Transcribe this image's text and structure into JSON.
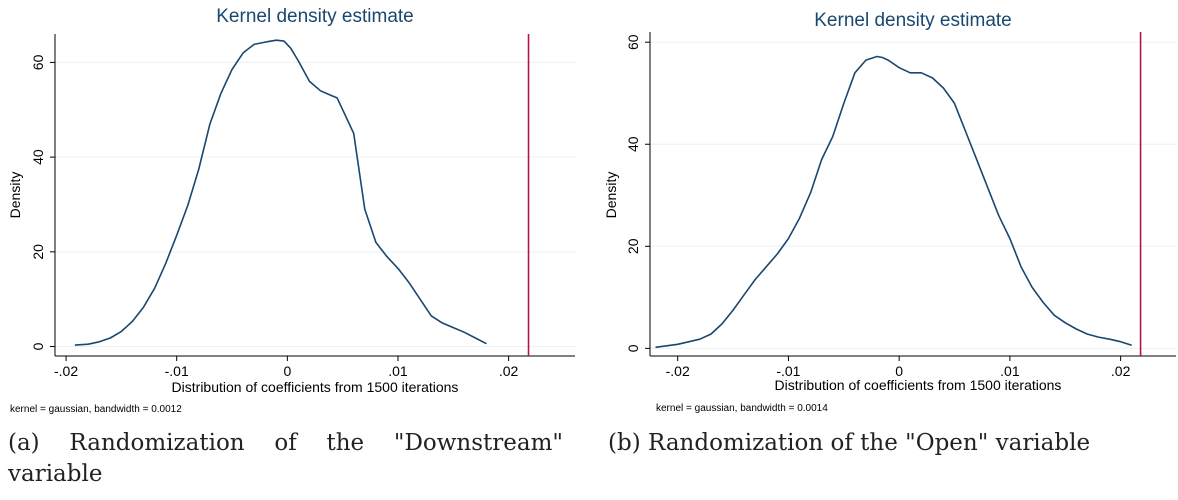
{
  "chart_data": [
    {
      "type": "line",
      "title": "Kernel density estimate",
      "xlabel": "Distribution of coefficients from 1500 iterations",
      "ylabel": "Density",
      "note": "kernel = gaussian, bandwidth = 0.0012",
      "xlim": [
        -0.021,
        0.026
      ],
      "ylim": [
        -2,
        66
      ],
      "xticks": [
        -0.02,
        -0.01,
        0,
        0.01,
        0.02
      ],
      "xtick_labels": [
        "-.02",
        "-.01",
        "0",
        ".01",
        ".02"
      ],
      "yticks": [
        0,
        20,
        40,
        60
      ],
      "ytick_labels": [
        "0",
        "20",
        "40",
        "60"
      ],
      "grid": true,
      "reference_line_x": 0.0218,
      "line_color": "#1a476f",
      "reference_color": "#b5134b",
      "series": [
        {
          "x": [
            -0.0192,
            -0.018,
            -0.017,
            -0.016,
            -0.015,
            -0.014,
            -0.013,
            -0.012,
            -0.011,
            -0.01,
            -0.009,
            -0.008,
            -0.007,
            -0.006,
            -0.005,
            -0.004,
            -0.003,
            -0.002,
            -0.001,
            -0.0003,
            0.0003,
            0.001,
            0.002,
            0.003,
            0.004,
            0.0045,
            0.005,
            0.006,
            0.007,
            0.008,
            0.009,
            0.01,
            0.011,
            0.012,
            0.013,
            0.014,
            0.015,
            0.016,
            0.017,
            0.018
          ],
          "y": [
            0.3,
            0.5,
            1.0,
            1.8,
            3.2,
            5.3,
            8.3,
            12.3,
            17.5,
            23.5,
            29.8,
            37.5,
            47.0,
            53.5,
            58.5,
            62.0,
            63.8,
            64.3,
            64.7,
            64.5,
            63.0,
            60.3,
            56.0,
            54.0,
            53.0,
            52.5,
            50.0,
            45.0,
            29.0,
            22.0,
            19.0,
            16.5,
            13.5,
            10.0,
            6.5,
            5.0,
            4.0,
            3.0,
            1.8,
            0.6
          ]
        }
      ],
      "caption": "(a) Randomization of the \"Downstream\" variable"
    },
    {
      "type": "line",
      "title": "Kernel density estimate",
      "xlabel": "Distribution of coefficients from 1500 iterations",
      "ylabel": "Density",
      "note": "kernel = gaussian, bandwidth = 0.0014",
      "xlim": [
        -0.0225,
        0.025
      ],
      "ylim": [
        -1.5,
        62
      ],
      "xticks": [
        -0.02,
        -0.01,
        0,
        0.01,
        0.02
      ],
      "xtick_labels": [
        "-.02",
        "-.01",
        "0",
        ".01",
        ".02"
      ],
      "yticks": [
        0,
        20,
        40,
        60
      ],
      "ytick_labels": [
        "0",
        "20",
        "40",
        "60"
      ],
      "grid": true,
      "reference_line_x": 0.0218,
      "line_color": "#1a476f",
      "reference_color": "#b5134b",
      "series": [
        {
          "x": [
            -0.022,
            -0.02,
            -0.018,
            -0.017,
            -0.016,
            -0.015,
            -0.014,
            -0.013,
            -0.012,
            -0.011,
            -0.01,
            -0.009,
            -0.008,
            -0.007,
            -0.006,
            -0.005,
            -0.004,
            -0.003,
            -0.002,
            -0.0015,
            -0.001,
            0,
            0.001,
            0.002,
            0.003,
            0.004,
            0.005,
            0.006,
            0.007,
            0.008,
            0.009,
            0.01,
            0.011,
            0.012,
            0.013,
            0.014,
            0.015,
            0.016,
            0.017,
            0.018,
            0.019,
            0.02,
            0.021
          ],
          "y": [
            0.2,
            0.8,
            1.8,
            2.8,
            4.8,
            7.5,
            10.5,
            13.5,
            16.0,
            18.5,
            21.5,
            25.5,
            30.5,
            37.0,
            41.5,
            48.0,
            54.0,
            56.5,
            57.2,
            57.0,
            56.5,
            55.0,
            54.0,
            54.0,
            53.0,
            51.0,
            48.0,
            42.5,
            37.0,
            31.5,
            26.0,
            21.5,
            16.0,
            12.0,
            9.0,
            6.5,
            5.0,
            3.8,
            2.8,
            2.2,
            1.8,
            1.3,
            0.6
          ]
        }
      ],
      "caption": "(b) Randomization of the \"Open\" variable"
    }
  ]
}
